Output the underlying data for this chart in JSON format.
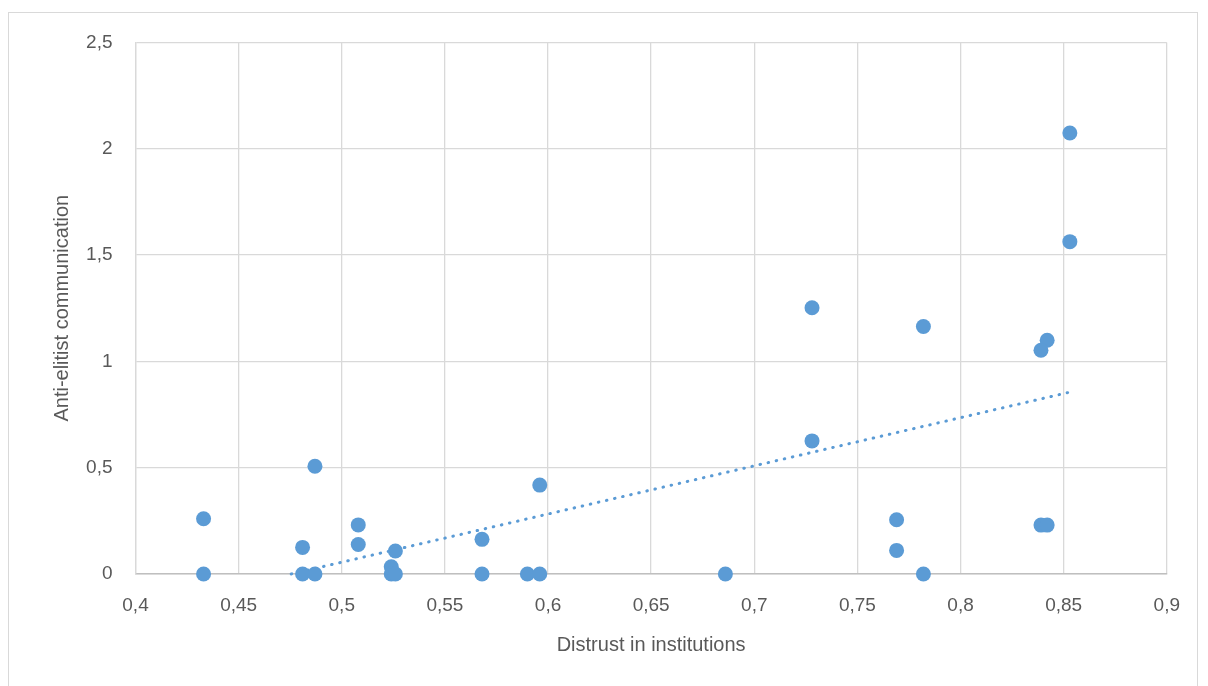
{
  "chart_data": {
    "type": "scatter",
    "xlabel": "Distrust in institutions",
    "ylabel": "Anti-elitist communication",
    "xlim": [
      0.4,
      0.9
    ],
    "xticks": [
      {
        "value": 0.4,
        "label": "0,4"
      },
      {
        "value": 0.45,
        "label": "0,45"
      },
      {
        "value": 0.5,
        "label": "0,5"
      },
      {
        "value": 0.55,
        "label": "0,55"
      },
      {
        "value": 0.6,
        "label": "0,6"
      },
      {
        "value": 0.65,
        "label": "0,65"
      },
      {
        "value": 0.7,
        "label": "0,7"
      },
      {
        "value": 0.75,
        "label": "0,75"
      },
      {
        "value": 0.8,
        "label": "0,8"
      },
      {
        "value": 0.85,
        "label": "0,85"
      },
      {
        "value": 0.9,
        "label": "0,9"
      }
    ],
    "ylim": [
      0,
      2.5
    ],
    "yticks": [
      0,
      {
        "value": 0.5,
        "label": "0,5"
      },
      1,
      {
        "value": 1.5,
        "label": "1,5"
      },
      2,
      {
        "value": 2.5,
        "label": "2,5"
      }
    ],
    "grid": true,
    "marker": "circle",
    "series": [
      {
        "type": "scatter",
        "color": "#5b9bd5",
        "x": [
          0.433,
          0.433,
          0.481,
          0.481,
          0.487,
          0.487,
          0.508,
          0.508,
          0.526,
          0.524,
          0.524,
          0.526,
          0.568,
          0.568,
          0.59,
          0.596,
          0.596,
          0.686,
          0.728,
          0.728,
          0.782,
          0.782,
          0.769,
          0.769,
          0.853,
          0.853,
          0.842,
          0.839,
          0.839,
          0.842
        ],
        "values": [
          0.26,
          0,
          0.125,
          0,
          0.507,
          0,
          0.231,
          0.139,
          0.108,
          0.034,
          0,
          0,
          0.163,
          0,
          0,
          0,
          0.418,
          0,
          0.626,
          1.252,
          1.164,
          0,
          0.255,
          0.111,
          2.074,
          1.563,
          1.099,
          1.052,
          0.23,
          0.23
        ]
      },
      {
        "type": "line",
        "color": "#5b9bd5",
        "line_style": "dotted",
        "marker": "none",
        "x": [
          0.4755,
          0.852
        ],
        "values": [
          0,
          0.853
        ]
      }
    ]
  }
}
